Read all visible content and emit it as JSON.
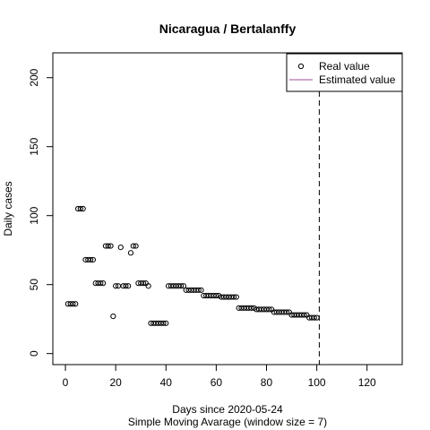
{
  "chart_data": {
    "type": "scatter",
    "title": "Nicaragua / Bertalanffy",
    "xlabel": "Days since 2020-05-24",
    "subtitle": "Simple Moving Avarage (window size = 7)",
    "ylabel": "Daily cases",
    "xlim": [
      -5,
      134
    ],
    "ylim": [
      -8,
      218
    ],
    "x_ticks": [
      "0",
      "20",
      "40",
      "60",
      "80",
      "100",
      "120"
    ],
    "y_ticks": [
      "0",
      "50",
      "100",
      "150",
      "200"
    ],
    "legend": {
      "position": "top-right",
      "real_label": "Real value",
      "estimated_label": "Estimated value"
    },
    "colors": {
      "estimated": "#9b4f96",
      "points": "#000000"
    },
    "vline_x": 101,
    "series": [
      {
        "name": "Real value",
        "x": [
          1,
          2,
          3,
          4,
          5,
          6,
          7,
          8,
          9,
          10,
          11,
          12,
          13,
          14,
          15,
          16,
          17,
          18,
          19,
          20,
          21,
          22,
          23,
          24,
          25,
          26,
          27,
          28,
          29,
          30,
          31,
          32,
          33,
          34,
          35,
          36,
          37,
          38,
          39,
          40,
          41,
          42,
          43,
          44,
          45,
          46,
          47,
          48,
          49,
          50,
          51,
          52,
          53,
          54,
          55,
          56,
          57,
          58,
          59,
          60,
          61,
          62,
          63,
          64,
          65,
          66,
          67,
          68,
          69,
          70,
          71,
          72,
          73,
          74,
          75,
          76,
          77,
          78,
          79,
          80,
          81,
          82,
          83,
          84,
          85,
          86,
          87,
          88,
          89,
          90,
          91,
          92,
          93,
          94,
          95,
          96,
          97,
          98,
          99,
          100
        ],
        "y": [
          36,
          36,
          36,
          36,
          105,
          105,
          105,
          68,
          68,
          68,
          68,
          51,
          51,
          51,
          51,
          78,
          78,
          78,
          27,
          49,
          49,
          77,
          49,
          49,
          49,
          73,
          78,
          78,
          51,
          51,
          51,
          51,
          49,
          22,
          22,
          22,
          22,
          22,
          22,
          22,
          49,
          49,
          49,
          49,
          49,
          49,
          49,
          46,
          46,
          46,
          46,
          46,
          46,
          46,
          42,
          42,
          42,
          42,
          42,
          42,
          42,
          41,
          41,
          41,
          41,
          41,
          41,
          41,
          33,
          33,
          33,
          33,
          33,
          33,
          33,
          32,
          32,
          32,
          32,
          32,
          32,
          32,
          30,
          30,
          30,
          30,
          30,
          30,
          30,
          28,
          28,
          28,
          28,
          28,
          28,
          28,
          26,
          26,
          26,
          26
        ]
      }
    ]
  }
}
